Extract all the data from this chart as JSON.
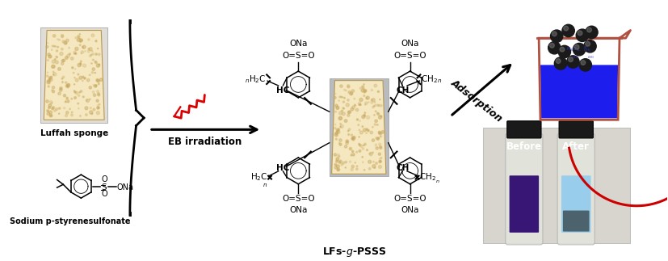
{
  "bg_color": "#ffffff",
  "luffah_sponge_label": "Luffah sponge",
  "sodium_label": "Sodium p-styrenesulfonate",
  "eb_label": "EB irradiation",
  "adsorption_label": "Adsorption",
  "product_label": "LFs-g-PSSS",
  "before_label": "Before",
  "after_label": "After",
  "sponge_color": "#f5e8c0",
  "sponge_border": "#b89850",
  "sponge_texture": "#c8a860",
  "sponge_bg": "#c8c8d0",
  "beaker_color": "#b05040",
  "blue_solution": "#1010ee",
  "before_solution": "#25006a",
  "after_solution": "#90ccee",
  "sphere_color": "#1a1a1a",
  "sphere_hi": "#777777",
  "arrow_color": "#000000",
  "red_arrow_color": "#cc0000",
  "red_wave_color": "#dd0000",
  "bracket_color": "#000000",
  "chem_color": "#000000",
  "text_color": "#000000",
  "photo_bg": "#d0ccc0",
  "vial_bg": "#cccccc",
  "cap_color": "#1a1a1a",
  "vial_glass": "#e5e8e0"
}
